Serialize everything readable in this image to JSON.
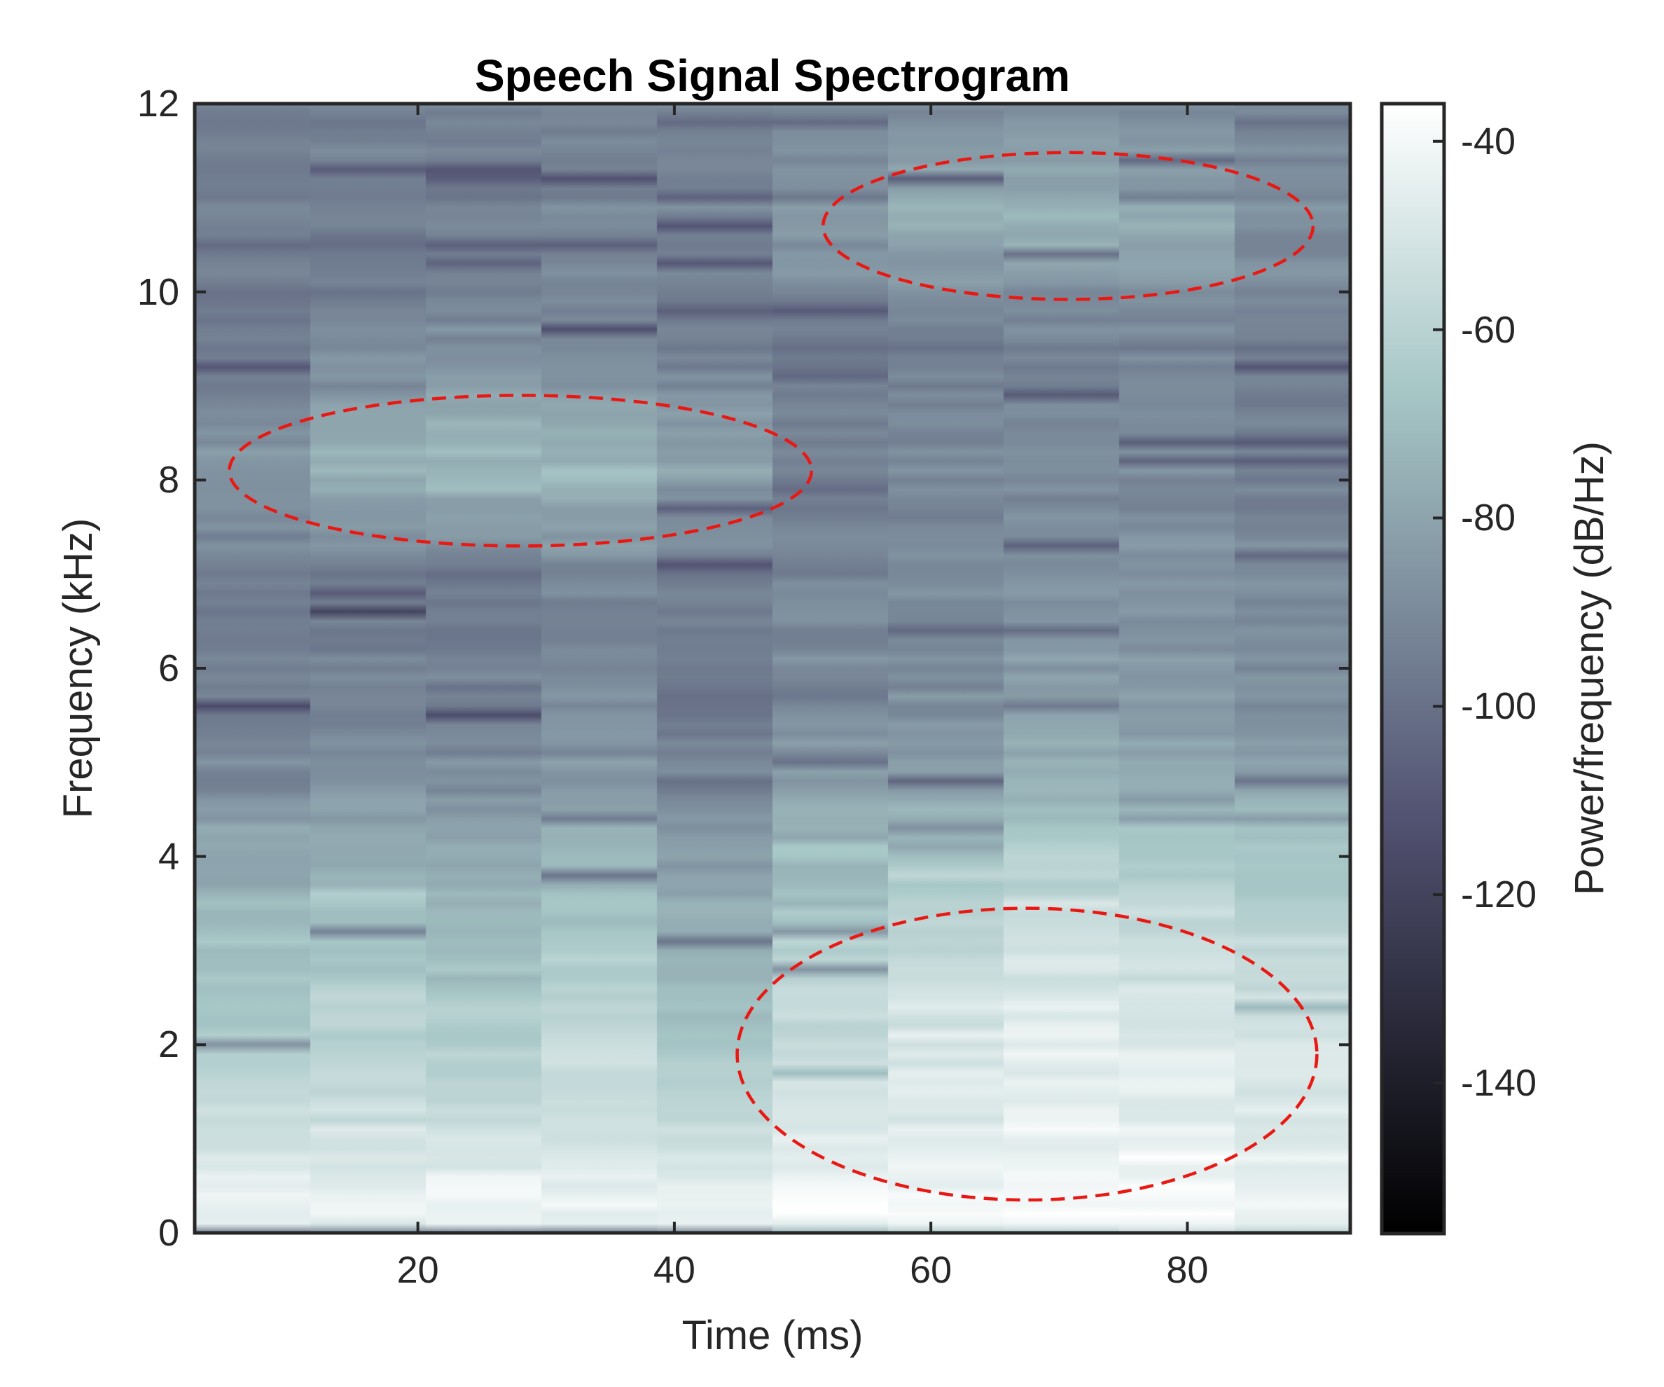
{
  "chart_data": {
    "type": "heatmap",
    "title": "Speech Signal Spectrogram",
    "xlabel": "Time (ms)",
    "ylabel": "Frequency (kHz)",
    "colorbar_label": "Power/frequency (dB/Hz)",
    "colormap": "bone",
    "xlim": [
      2.6,
      92.7
    ],
    "ylim": [
      0,
      12
    ],
    "clim": [
      -156,
      -36
    ],
    "x_ticks": [
      20,
      40,
      60,
      80
    ],
    "y_ticks": [
      0,
      2,
      4,
      6,
      8,
      10,
      12
    ],
    "colorbar_ticks": [
      -40,
      -60,
      -80,
      -100,
      -120,
      -140
    ],
    "grid": false,
    "time_columns_ms": [
      7,
      16,
      25,
      34,
      43,
      52,
      61,
      70,
      79,
      88
    ],
    "freq_nodes_khz": [
      0,
      0.5,
      1,
      1.5,
      2,
      2.5,
      3,
      3.5,
      4,
      4.5,
      5,
      5.5,
      6,
      6.5,
      7,
      7.5,
      8,
      8.5,
      9,
      9.5,
      10,
      10.5,
      11,
      11.5,
      12
    ],
    "power_db": [
      [
        -97,
        -95,
        -93,
        -96,
        -92,
        -75,
        -65,
        -62,
        -60,
        -66
      ],
      [
        -44,
        -43,
        -42,
        -44,
        -43,
        -41,
        -40,
        -39,
        -39,
        -42
      ],
      [
        -52,
        -50,
        -53,
        -51,
        -54,
        -48,
        -45,
        -43,
        -44,
        -47
      ],
      [
        -58,
        -55,
        -57,
        -54,
        -60,
        -52,
        -48,
        -45,
        -46,
        -50
      ],
      [
        -62,
        -60,
        -63,
        -58,
        -66,
        -55,
        -50,
        -46,
        -48,
        -52
      ],
      [
        -66,
        -63,
        -66,
        -61,
        -70,
        -58,
        -52,
        -48,
        -50,
        -55
      ],
      [
        -70,
        -67,
        -70,
        -65,
        -74,
        -62,
        -56,
        -52,
        -54,
        -58
      ],
      [
        -74,
        -71,
        -74,
        -69,
        -78,
        -66,
        -60,
        -56,
        -58,
        -62
      ],
      [
        -80,
        -77,
        -80,
        -75,
        -83,
        -72,
        -66,
        -62,
        -64,
        -68
      ],
      [
        -86,
        -83,
        -85,
        -80,
        -88,
        -78,
        -74,
        -70,
        -72,
        -75
      ],
      [
        -92,
        -88,
        -90,
        -85,
        -92,
        -84,
        -82,
        -78,
        -80,
        -82
      ],
      [
        -95,
        -92,
        -93,
        -88,
        -94,
        -88,
        -86,
        -82,
        -84,
        -86
      ],
      [
        -96,
        -94,
        -94,
        -90,
        -95,
        -90,
        -88,
        -84,
        -86,
        -88
      ],
      [
        -96,
        -95,
        -95,
        -91,
        -95,
        -91,
        -89,
        -86,
        -87,
        -89
      ],
      [
        -97,
        -96,
        -96,
        -92,
        -96,
        -92,
        -90,
        -87,
        -88,
        -90
      ],
      [
        -90,
        -84,
        -82,
        -81,
        -88,
        -92,
        -91,
        -88,
        -89,
        -91
      ],
      [
        -84,
        -74,
        -71,
        -72,
        -80,
        -92,
        -91,
        -89,
        -90,
        -92
      ],
      [
        -87,
        -77,
        -74,
        -76,
        -83,
        -93,
        -92,
        -90,
        -91,
        -93
      ],
      [
        -93,
        -87,
        -84,
        -85,
        -90,
        -94,
        -93,
        -91,
        -92,
        -94
      ],
      [
        -96,
        -92,
        -90,
        -91,
        -93,
        -95,
        -94,
        -92,
        -93,
        -95
      ],
      [
        -97,
        -95,
        -93,
        -93,
        -94,
        -92,
        -88,
        -86,
        -88,
        -92
      ],
      [
        -96,
        -95,
        -94,
        -93,
        -93,
        -84,
        -78,
        -75,
        -78,
        -88
      ],
      [
        -95,
        -94,
        -93,
        -93,
        -93,
        -85,
        -79,
        -76,
        -79,
        -89
      ],
      [
        -94,
        -93,
        -93,
        -92,
        -92,
        -89,
        -85,
        -83,
        -85,
        -90
      ],
      [
        -93,
        -92,
        -92,
        -91,
        -91,
        -90,
        -88,
        -86,
        -87,
        -90
      ]
    ],
    "noise": {
      "seed": 7,
      "row_amp_db": 3,
      "cell_amp_db": 4,
      "dark_streak_prob": 0.045,
      "dark_streak_depth_db": [
        10,
        26
      ],
      "light_streak_prob": 0.06,
      "light_streak_gain_db": 6
    },
    "annotations": [
      {
        "type": "ellipse",
        "t_ms": 70.7,
        "f_khz": 10.7,
        "rt_ms": 19.1,
        "rf_khz": 0.78,
        "color": "#ea1812",
        "line_style": "dashed"
      },
      {
        "type": "ellipse",
        "t_ms": 28.0,
        "f_khz": 8.1,
        "rt_ms": 22.7,
        "rf_khz": 0.8,
        "color": "#ea1812",
        "line_style": "dashed"
      },
      {
        "type": "ellipse",
        "t_ms": 67.5,
        "f_khz": 1.9,
        "rt_ms": 22.6,
        "rf_khz": 1.55,
        "color": "#ea1812",
        "line_style": "dashed"
      }
    ]
  },
  "style": {
    "axis_color": "#262626",
    "background": "#ffffff",
    "spine_width": 5,
    "tick_len": 16,
    "tick_width": 4,
    "ellipse_stroke_width": 4.5,
    "ellipse_dash": "20 12"
  }
}
